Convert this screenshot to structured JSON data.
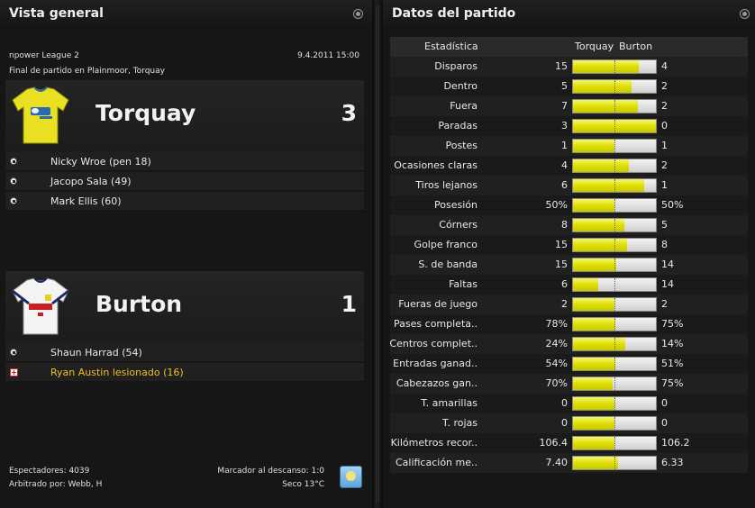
{
  "left_panel": {
    "title": "Vista general",
    "competition": "npower League 2",
    "datetime": "9.4.2011 15:00",
    "venue": "Final de partido en Plainmoor, Torquay",
    "home": {
      "name": "Torquay",
      "score": "3",
      "shirt_colors": {
        "main": "#e8e020",
        "trim": "#2a6ab0"
      },
      "events": [
        {
          "type": "goal",
          "text": "Nicky Wroe (pen 18)"
        },
        {
          "type": "goal",
          "text": "Jacopo Sala (49)"
        },
        {
          "type": "goal",
          "text": "Mark Ellis (60)"
        }
      ]
    },
    "away": {
      "name": "Burton",
      "score": "1",
      "shirt_colors": {
        "main": "#f4f4f4",
        "trim": "#1a2a6a"
      },
      "events": [
        {
          "type": "goal",
          "text": "Shaun Harrad (54)"
        },
        {
          "type": "injury",
          "text": "Ryan Austin lesionado (16)"
        }
      ]
    },
    "footer": {
      "attendance": "Espectadores: 4039",
      "referee": "Arbitrado por: Webb, H",
      "halftime": "Marcador al descanso: 1:0",
      "weather": "Seco 13°C",
      "weather_icon": "sunny-icon"
    }
  },
  "right_panel": {
    "title": "Datos del partido",
    "header": {
      "label": "Estadística",
      "home": "Torquay",
      "away": "Burton"
    },
    "colors": {
      "home_bar": "#dcdc00",
      "away_bar": "#e6e6e6"
    },
    "stats": [
      {
        "label": "Disparos",
        "home": "15",
        "away": "4",
        "home_share": 0.79
      },
      {
        "label": "Dentro",
        "home": "5",
        "away": "2",
        "home_share": 0.71
      },
      {
        "label": "Fuera",
        "home": "7",
        "away": "2",
        "home_share": 0.78
      },
      {
        "label": "Paradas",
        "home": "3",
        "away": "0",
        "home_share": 1.0
      },
      {
        "label": "Postes",
        "home": "1",
        "away": "1",
        "home_share": 0.5
      },
      {
        "label": "Ocasiones claras",
        "home": "4",
        "away": "2",
        "home_share": 0.67
      },
      {
        "label": "Tiros lejanos",
        "home": "6",
        "away": "1",
        "home_share": 0.86
      },
      {
        "label": "Posesión",
        "home": "50%",
        "away": "50%",
        "home_share": 0.5
      },
      {
        "label": "Córners",
        "home": "8",
        "away": "5",
        "home_share": 0.62
      },
      {
        "label": "Golpe franco",
        "home": "15",
        "away": "8",
        "home_share": 0.65
      },
      {
        "label": "S. de banda",
        "home": "15",
        "away": "14",
        "home_share": 0.52
      },
      {
        "label": "Faltas",
        "home": "6",
        "away": "14",
        "home_share": 0.3
      },
      {
        "label": "Fueras de juego",
        "home": "2",
        "away": "2",
        "home_share": 0.5
      },
      {
        "label": "Pases completa..",
        "home": "78%",
        "away": "75%",
        "home_share": 0.51
      },
      {
        "label": "Centros complet..",
        "home": "24%",
        "away": "14%",
        "home_share": 0.63
      },
      {
        "label": "Entradas ganad..",
        "home": "54%",
        "away": "51%",
        "home_share": 0.51
      },
      {
        "label": "Cabezazos gan..",
        "home": "70%",
        "away": "75%",
        "home_share": 0.48
      },
      {
        "label": "T. amarillas",
        "home": "0",
        "away": "0",
        "home_share": 0.5
      },
      {
        "label": "T. rojas",
        "home": "0",
        "away": "0",
        "home_share": 0.5
      },
      {
        "label": "Kilómetros recor..",
        "home": "106.4",
        "away": "106.2",
        "home_share": 0.5
      },
      {
        "label": "Calificación me..",
        "home": "7.40",
        "away": "6.33",
        "home_share": 0.54
      }
    ]
  }
}
